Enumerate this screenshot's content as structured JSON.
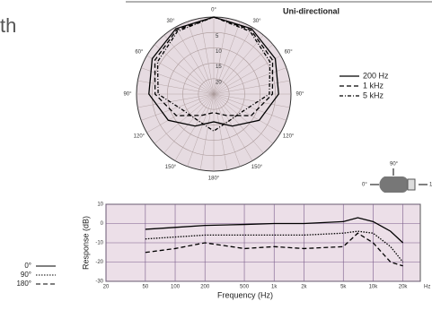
{
  "header": {
    "fragment": "th",
    "polar_title": "Uni-directional"
  },
  "mic_diagram": {
    "front": "0°",
    "side": "90°",
    "rear": "1"
  },
  "chart_data": [
    {
      "type": "polar",
      "angles": [
        0,
        30,
        60,
        90,
        120,
        150,
        180,
        210,
        240,
        270,
        300,
        330
      ],
      "angle_ticks": [
        {
          "value": 0,
          "label": "0°"
        },
        {
          "value": 30,
          "label": "30°"
        },
        {
          "value": 60,
          "label": "60°"
        },
        {
          "value": 90,
          "label": "90°"
        },
        {
          "value": 120,
          "label": "120°"
        },
        {
          "value": 150,
          "label": "150°"
        },
        {
          "value": 180,
          "label": "180°"
        },
        {
          "value": 210,
          "label": "150°"
        },
        {
          "value": 240,
          "label": "120°"
        },
        {
          "value": 270,
          "label": "90°"
        },
        {
          "value": 300,
          "label": "60°"
        },
        {
          "value": 330,
          "label": "30°"
        }
      ],
      "rlim": [
        -25,
        0
      ],
      "rticks": [
        {
          "value": -5,
          "label": "5"
        },
        {
          "value": -10,
          "label": "10"
        },
        {
          "value": -15,
          "label": "15"
        },
        {
          "value": -20,
          "label": "20"
        }
      ],
      "series": [
        {
          "name": "200 Hz",
          "color": "#000000",
          "dash": "solid",
          "values": [
            0,
            -0.5,
            -2,
            -4,
            -8,
            -13,
            -16,
            -13,
            -8,
            -4,
            -2,
            -0.5
          ]
        },
        {
          "name": "1 kHz",
          "color": "#000000",
          "dash": "dashed",
          "values": [
            0,
            -1,
            -3,
            -6,
            -11,
            -17,
            -19,
            -17,
            -11,
            -6,
            -3,
            -1
          ]
        },
        {
          "name": "5 kHz",
          "color": "#000000",
          "dash": "dashdot",
          "values": [
            0,
            -1.5,
            -4,
            -7,
            -14,
            -15,
            -13,
            -15,
            -14,
            -7,
            -4,
            -1.5
          ]
        }
      ]
    },
    {
      "type": "line",
      "log_x": true,
      "grid": true,
      "xlabel": "Frequency (Hz)",
      "ylabel": "Response (dB)",
      "x_unit_label": "Hz",
      "xlim": [
        20,
        30000
      ],
      "ylim": [
        -30,
        10
      ],
      "xticks": [
        20,
        50,
        100,
        200,
        500,
        {
          "value": 1000,
          "label": "1k"
        },
        {
          "value": 2000,
          "label": "2k"
        },
        {
          "value": 5000,
          "label": "5k"
        },
        {
          "value": 10000,
          "label": "10k"
        },
        {
          "value": 20000,
          "label": "20k"
        }
      ],
      "yticks": [
        10,
        0,
        -10,
        -20,
        -30
      ],
      "x": [
        50,
        100,
        200,
        500,
        1000,
        2000,
        5000,
        7000,
        10000,
        15000,
        20000
      ],
      "series": [
        {
          "name": "0°",
          "color": "#000000",
          "dash": "solid",
          "values": [
            -3,
            -2,
            -1,
            -0.5,
            0,
            0,
            1,
            3,
            1,
            -4,
            -10
          ]
        },
        {
          "name": "90°",
          "color": "#000000",
          "dash": "dotted",
          "values": [
            -8,
            -7,
            -6,
            -6,
            -6,
            -6,
            -5,
            -4,
            -5,
            -12,
            -20
          ]
        },
        {
          "name": "180°",
          "color": "#000000",
          "dash": "dashed",
          "values": [
            -15,
            -13,
            -10,
            -13,
            -12,
            -13,
            -12,
            -5,
            -10,
            -20,
            -22
          ]
        }
      ]
    }
  ]
}
